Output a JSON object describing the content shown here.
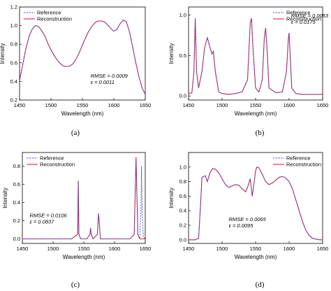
{
  "colors": {
    "reference": "#3b4cc0",
    "reconstruction": "#e8253f",
    "axis": "#000000"
  },
  "chart_data": [
    {
      "type": "line",
      "panel": "(a)",
      "xlabel": "Wavelength (nm)",
      "ylabel": "Intensity",
      "xlim": [
        1450,
        1650
      ],
      "ylim": [
        0.2,
        1.2
      ],
      "xticks": [
        1450,
        1500,
        1550,
        1600,
        1650
      ],
      "yticks": [
        0.2,
        0.4,
        0.6,
        0.8,
        1.0,
        1.2
      ],
      "yticklabels": [
        "0.2",
        "0.4",
        "0.6",
        "0.8",
        "1.0",
        "1.2"
      ],
      "grid": false,
      "legend": "top-left",
      "annotations": [
        "RMSE = 0.0009",
        "ε = 0.0011"
      ],
      "annotation_pos": [
        1563,
        0.44
      ],
      "series": [
        {
          "name": "Reference",
          "style": "dashed",
          "x": [
            1450,
            1455,
            1460,
            1465,
            1470,
            1475,
            1480,
            1485,
            1490,
            1495,
            1500,
            1505,
            1510,
            1515,
            1520,
            1525,
            1530,
            1535,
            1540,
            1545,
            1550,
            1555,
            1560,
            1565,
            1570,
            1575,
            1580,
            1585,
            1590,
            1595,
            1600,
            1605,
            1610,
            1615,
            1620,
            1625,
            1630,
            1635,
            1640,
            1645,
            1650
          ],
          "y": [
            0.41,
            0.58,
            0.75,
            0.88,
            0.96,
            1.0,
            0.99,
            0.95,
            0.89,
            0.81,
            0.74,
            0.68,
            0.63,
            0.59,
            0.565,
            0.56,
            0.565,
            0.59,
            0.64,
            0.71,
            0.79,
            0.87,
            0.94,
            0.99,
            1.03,
            1.05,
            1.05,
            1.04,
            1.01,
            0.97,
            0.94,
            0.96,
            1.02,
            1.06,
            1.04,
            0.93,
            0.77,
            0.6,
            0.45,
            0.33,
            0.26
          ]
        },
        {
          "name": "Reconstruction",
          "style": "solid",
          "x": [
            1450,
            1455,
            1460,
            1465,
            1470,
            1475,
            1480,
            1485,
            1490,
            1495,
            1500,
            1505,
            1510,
            1515,
            1520,
            1525,
            1530,
            1535,
            1540,
            1545,
            1550,
            1555,
            1560,
            1565,
            1570,
            1575,
            1580,
            1585,
            1590,
            1595,
            1600,
            1605,
            1610,
            1615,
            1620,
            1625,
            1630,
            1635,
            1640,
            1645,
            1650
          ],
          "y": [
            0.41,
            0.58,
            0.75,
            0.88,
            0.96,
            1.0,
            0.99,
            0.95,
            0.89,
            0.81,
            0.74,
            0.68,
            0.63,
            0.59,
            0.565,
            0.56,
            0.565,
            0.59,
            0.64,
            0.71,
            0.79,
            0.87,
            0.94,
            0.99,
            1.03,
            1.05,
            1.05,
            1.04,
            1.01,
            0.97,
            0.94,
            0.96,
            1.02,
            1.06,
            1.04,
            0.93,
            0.77,
            0.6,
            0.45,
            0.33,
            0.26
          ]
        }
      ]
    },
    {
      "type": "line",
      "panel": "(b)",
      "xlabel": "Wavelength (nm)",
      "ylabel": "Intensity",
      "xlim": [
        1450,
        1650
      ],
      "ylim": [
        -0.05,
        1.1
      ],
      "xticks": [
        1450,
        1500,
        1550,
        1600,
        1650
      ],
      "yticks": [
        0.0,
        0.5,
        1.0
      ],
      "yticklabels": [
        "0.0",
        "0.5",
        "1.0"
      ],
      "grid": false,
      "legend": "top-right",
      "annotations": [
        "RMSE = 0.0053",
        "ε = 0.0175"
      ],
      "annotation_pos": [
        1603,
        0.97
      ],
      "series": [
        {
          "name": "Reference",
          "style": "dashed",
          "x": [
            1450,
            1455,
            1458,
            1460,
            1462,
            1465,
            1470,
            1474,
            1478,
            1482,
            1485,
            1487,
            1490,
            1495,
            1500,
            1510,
            1520,
            1530,
            1538,
            1542,
            1544,
            1546,
            1550,
            1555,
            1560,
            1563,
            1565,
            1567,
            1570,
            1580,
            1590,
            1596,
            1599,
            1600,
            1601,
            1604,
            1610,
            1620,
            1630,
            1640,
            1650
          ],
          "y": [
            0.03,
            0.04,
            0.3,
            0.96,
            0.3,
            0.1,
            0.3,
            0.6,
            0.72,
            0.6,
            0.52,
            0.55,
            0.3,
            0.05,
            0.03,
            0.02,
            0.03,
            0.05,
            0.2,
            0.9,
            0.96,
            0.6,
            0.1,
            0.05,
            0.2,
            0.72,
            0.84,
            0.6,
            0.1,
            0.04,
            0.05,
            0.3,
            0.72,
            0.78,
            0.6,
            0.1,
            0.03,
            0.02,
            0.02,
            0.02,
            0.02
          ]
        },
        {
          "name": "Reconstruction",
          "style": "solid",
          "x": [
            1450,
            1455,
            1458,
            1460,
            1462,
            1465,
            1470,
            1474,
            1478,
            1482,
            1485,
            1487,
            1490,
            1495,
            1500,
            1510,
            1520,
            1530,
            1538,
            1542,
            1544,
            1546,
            1550,
            1555,
            1560,
            1563,
            1565,
            1567,
            1570,
            1580,
            1590,
            1596,
            1599,
            1600,
            1601,
            1604,
            1610,
            1620,
            1630,
            1640,
            1650
          ],
          "y": [
            0.03,
            0.04,
            0.3,
            0.96,
            0.3,
            0.1,
            0.3,
            0.6,
            0.72,
            0.6,
            0.52,
            0.55,
            0.3,
            0.05,
            0.03,
            0.02,
            0.03,
            0.05,
            0.2,
            0.9,
            0.96,
            0.6,
            0.1,
            0.05,
            0.2,
            0.72,
            0.84,
            0.6,
            0.1,
            0.04,
            0.05,
            0.3,
            0.72,
            0.78,
            0.6,
            0.1,
            0.03,
            0.02,
            0.02,
            0.02,
            0.02
          ]
        }
      ]
    },
    {
      "type": "line",
      "panel": "(c)",
      "xlabel": "Wavelength (nm)",
      "ylabel": "Intensity",
      "xlim": [
        1450,
        1650
      ],
      "ylim": [
        -0.05,
        0.95
      ],
      "xticks": [
        1450,
        1500,
        1550,
        1600,
        1650
      ],
      "yticks": [
        0.0,
        0.2,
        0.4,
        0.6,
        0.8
      ],
      "yticklabels": [
        "0.0",
        "0.2",
        "0.4",
        "0.6",
        "0.8"
      ],
      "grid": false,
      "legend": "top-left",
      "annotations": [
        "RMSE = 0.0106",
        "ε = 0.0837"
      ],
      "annotation_pos": [
        1462,
        0.24
      ],
      "series": [
        {
          "name": "Reference",
          "style": "dashed",
          "x": [
            1450,
            1470,
            1490,
            1500,
            1510,
            1530,
            1540,
            1541,
            1542,
            1545,
            1555,
            1560,
            1561,
            1562,
            1565,
            1572,
            1574,
            1575,
            1577,
            1590,
            1610,
            1625,
            1632,
            1634,
            1635,
            1636,
            1638,
            1641,
            1643,
            1644,
            1645,
            1647,
            1650
          ],
          "y": [
            0.0,
            0.0,
            0.0,
            0.0,
            0.0,
            0.0,
            0.05,
            0.64,
            0.05,
            0.0,
            0.0,
            0.05,
            0.12,
            0.05,
            0.0,
            0.05,
            0.28,
            0.2,
            0.0,
            0.0,
            0.0,
            0.0,
            0.05,
            0.6,
            0.88,
            0.6,
            0.05,
            0.0,
            0.3,
            0.8,
            0.3,
            0.02,
            0.0
          ]
        },
        {
          "name": "Reconstruction",
          "style": "solid",
          "x": [
            1450,
            1470,
            1490,
            1500,
            1510,
            1530,
            1540,
            1541,
            1542,
            1545,
            1555,
            1560,
            1561,
            1562,
            1565,
            1572,
            1574,
            1575,
            1577,
            1590,
            1610,
            1625,
            1632,
            1634,
            1635,
            1636,
            1638,
            1641,
            1643,
            1644,
            1645,
            1647,
            1650
          ],
          "y": [
            0.0,
            0.0,
            0.0,
            0.0,
            0.0,
            0.0,
            0.05,
            0.64,
            0.05,
            0.0,
            0.0,
            0.05,
            0.12,
            0.05,
            0.0,
            0.05,
            0.28,
            0.2,
            0.0,
            0.0,
            0.0,
            0.0,
            0.05,
            0.6,
            0.9,
            0.6,
            0.05,
            0.0,
            0.0,
            0.0,
            0.0,
            0.0,
            0.0
          ]
        }
      ]
    },
    {
      "type": "line",
      "panel": "(d)",
      "xlabel": "Wavelength (nm)",
      "ylabel": "Intensity",
      "xlim": [
        1450,
        1650
      ],
      "ylim": [
        -0.05,
        1.2
      ],
      "xticks": [
        1450,
        1500,
        1550,
        1600,
        1650
      ],
      "yticks": [
        0.0,
        0.2,
        0.4,
        0.6,
        0.8,
        1.0
      ],
      "yticklabels": [
        "0.0",
        "0.2",
        "0.4",
        "0.6",
        "0.8",
        "1.0"
      ],
      "grid": false,
      "legend": "top-right",
      "annotations": [
        "RMSE = 0.0065",
        "ε = 0.0095"
      ],
      "annotation_pos": [
        1510,
        0.26
      ],
      "series": [
        {
          "name": "Reference",
          "style": "dashed",
          "x": [
            1450,
            1460,
            1465,
            1468,
            1470,
            1475,
            1478,
            1482,
            1486,
            1490,
            1495,
            1500,
            1505,
            1510,
            1515,
            1520,
            1525,
            1530,
            1535,
            1538,
            1542,
            1545,
            1548,
            1550,
            1552,
            1555,
            1560,
            1565,
            1570,
            1575,
            1580,
            1585,
            1590,
            1595,
            1600,
            1605,
            1610,
            1615,
            1620,
            1625,
            1630,
            1635,
            1640,
            1645,
            1650
          ],
          "y": [
            0.0,
            0.0,
            0.02,
            0.5,
            0.86,
            0.88,
            0.8,
            0.92,
            0.98,
            0.97,
            0.92,
            0.84,
            0.76,
            0.72,
            0.74,
            0.76,
            0.75,
            0.7,
            0.66,
            0.72,
            0.84,
            0.6,
            0.8,
            0.95,
            1.0,
            0.99,
            0.9,
            0.8,
            0.76,
            0.78,
            0.82,
            0.86,
            0.87,
            0.85,
            0.8,
            0.7,
            0.55,
            0.4,
            0.25,
            0.13,
            0.06,
            0.02,
            0.01,
            0.0,
            0.0
          ]
        },
        {
          "name": "Reconstruction",
          "style": "solid",
          "x": [
            1450,
            1460,
            1465,
            1468,
            1470,
            1475,
            1478,
            1482,
            1486,
            1490,
            1495,
            1500,
            1505,
            1510,
            1515,
            1520,
            1525,
            1530,
            1535,
            1538,
            1542,
            1545,
            1548,
            1550,
            1552,
            1555,
            1560,
            1565,
            1570,
            1575,
            1580,
            1585,
            1590,
            1595,
            1600,
            1605,
            1610,
            1615,
            1620,
            1625,
            1630,
            1635,
            1640,
            1645,
            1650
          ],
          "y": [
            0.0,
            0.0,
            0.02,
            0.5,
            0.86,
            0.88,
            0.8,
            0.92,
            0.98,
            0.97,
            0.92,
            0.84,
            0.76,
            0.72,
            0.74,
            0.76,
            0.75,
            0.7,
            0.66,
            0.72,
            0.84,
            0.6,
            0.8,
            0.95,
            1.0,
            0.99,
            0.9,
            0.8,
            0.76,
            0.78,
            0.82,
            0.86,
            0.87,
            0.85,
            0.8,
            0.7,
            0.55,
            0.4,
            0.25,
            0.13,
            0.06,
            0.02,
            0.01,
            0.0,
            0.0
          ]
        }
      ]
    }
  ]
}
